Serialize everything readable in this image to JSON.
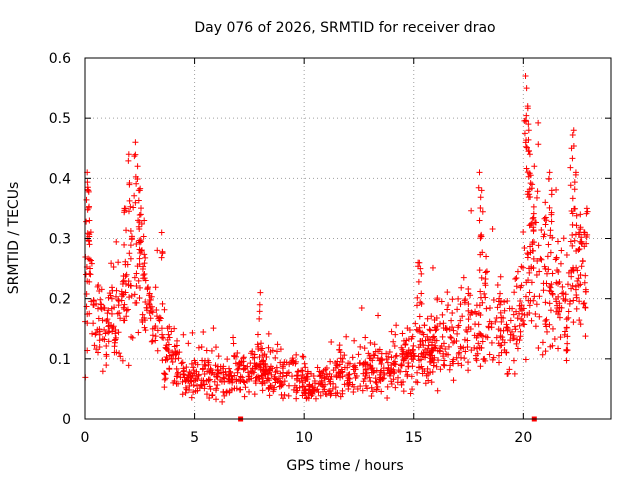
{
  "chart_data": {
    "type": "scatter",
    "title": "Day 076 of 2026, SRMTID for receiver drao",
    "xlabel": "GPS time / hours",
    "ylabel": "SRMTID / TECUs",
    "xlim": [
      0,
      24
    ],
    "ylim": [
      0,
      0.6
    ],
    "xticks": [
      0,
      5,
      10,
      15,
      20
    ],
    "xtick_labels": [
      "0",
      "5",
      "10",
      "15",
      "20"
    ],
    "yticks": [
      0,
      0.1,
      0.2,
      0.3,
      0.4,
      0.5,
      0.6
    ],
    "ytick_labels": [
      "0",
      "0.1",
      "0.2",
      "0.3",
      "0.4",
      "0.5",
      "0.6"
    ],
    "grid": true,
    "marker": "+",
    "color": "#ff0000",
    "series": [
      {
        "name": "SRMTID",
        "trend": [
          [
            0.0,
            0.2
          ],
          [
            0.2,
            0.26
          ],
          [
            0.5,
            0.16
          ],
          [
            0.8,
            0.13
          ],
          [
            1.2,
            0.17
          ],
          [
            1.6,
            0.18
          ],
          [
            2.0,
            0.25
          ],
          [
            2.4,
            0.26
          ],
          [
            2.8,
            0.19
          ],
          [
            3.2,
            0.15
          ],
          [
            3.6,
            0.12
          ],
          [
            4.0,
            0.1
          ],
          [
            4.5,
            0.07
          ],
          [
            5.0,
            0.07
          ],
          [
            5.5,
            0.075
          ],
          [
            6.0,
            0.07
          ],
          [
            7.0,
            0.07
          ],
          [
            7.8,
            0.08
          ],
          [
            8.5,
            0.075
          ],
          [
            9.5,
            0.07
          ],
          [
            10.5,
            0.05
          ],
          [
            11.5,
            0.07
          ],
          [
            12.5,
            0.08
          ],
          [
            13.5,
            0.085
          ],
          [
            14.5,
            0.09
          ],
          [
            15.5,
            0.11
          ],
          [
            16.5,
            0.13
          ],
          [
            17.5,
            0.15
          ],
          [
            18.5,
            0.15
          ],
          [
            19.5,
            0.15
          ],
          [
            20.0,
            0.2
          ],
          [
            20.5,
            0.24
          ],
          [
            21.0,
            0.2
          ],
          [
            21.5,
            0.2
          ],
          [
            22.0,
            0.18
          ],
          [
            22.5,
            0.24
          ],
          [
            22.9,
            0.25
          ]
        ],
        "spikes": [
          [
            0.1,
            0.41
          ],
          [
            0.15,
            0.38
          ],
          [
            0.2,
            0.33
          ],
          [
            1.8,
            0.35
          ],
          [
            2.0,
            0.44
          ],
          [
            2.3,
            0.46
          ],
          [
            2.4,
            0.42
          ],
          [
            2.5,
            0.38
          ],
          [
            2.7,
            0.33
          ],
          [
            3.5,
            0.31
          ],
          [
            8.0,
            0.21
          ],
          [
            15.2,
            0.26
          ],
          [
            15.3,
            0.25
          ],
          [
            18.0,
            0.41
          ],
          [
            18.1,
            0.38
          ],
          [
            18.3,
            0.27
          ],
          [
            20.1,
            0.57
          ],
          [
            20.15,
            0.55
          ],
          [
            20.2,
            0.52
          ],
          [
            20.25,
            0.48
          ],
          [
            20.3,
            0.44
          ],
          [
            20.4,
            0.39
          ],
          [
            20.5,
            0.42
          ],
          [
            21.0,
            0.36
          ],
          [
            21.2,
            0.41
          ],
          [
            21.3,
            0.38
          ],
          [
            22.2,
            0.45
          ],
          [
            22.3,
            0.48
          ],
          [
            22.4,
            0.41
          ],
          [
            22.6,
            0.34
          ],
          [
            22.8,
            0.31
          ],
          [
            22.9,
            0.35
          ]
        ]
      }
    ],
    "x_axis_markers": [
      7.1,
      20.5
    ]
  }
}
